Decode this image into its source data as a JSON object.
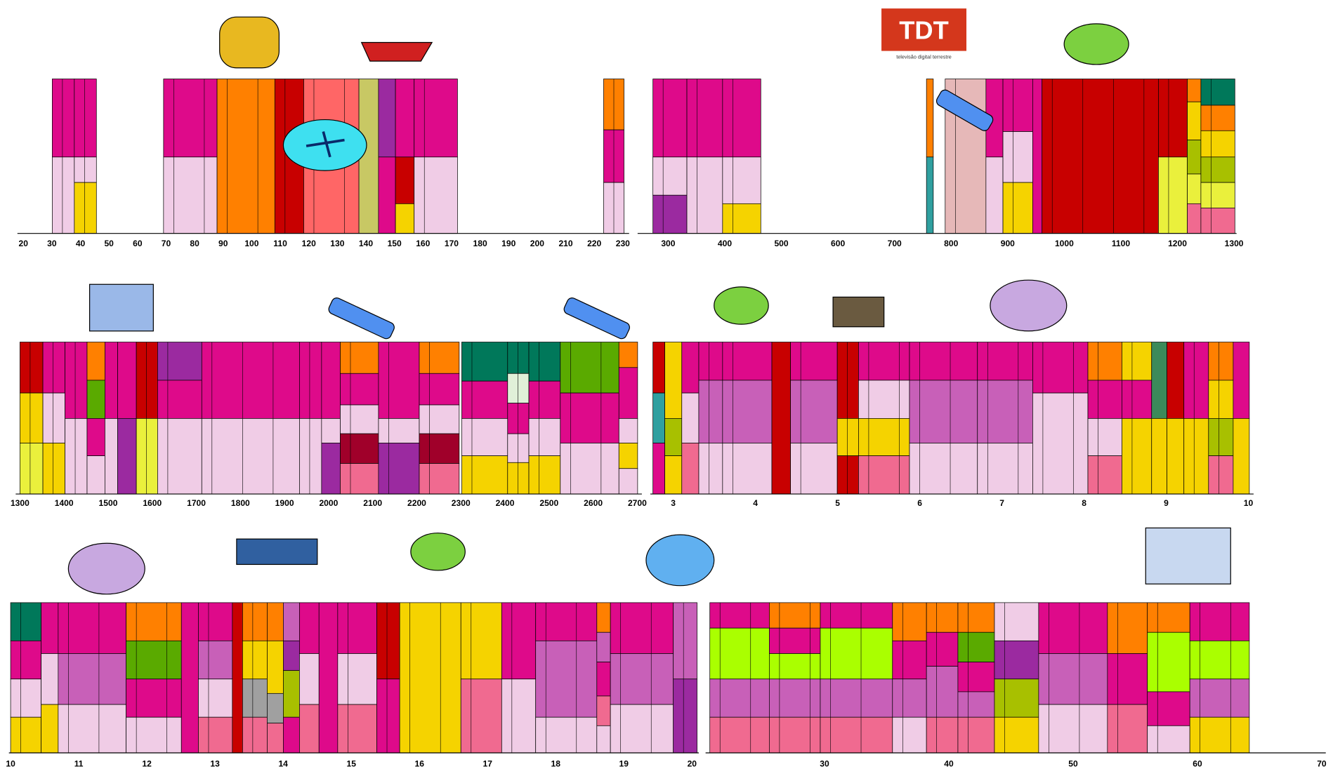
{
  "logo": {
    "title": "TDT",
    "subtitle": "televisão digital terrestre"
  },
  "rows": [
    {
      "ticks": [
        "20",
        "30",
        "40",
        "50",
        "60",
        "70",
        "80",
        "90",
        "100",
        "110",
        "120",
        "130",
        "140",
        "150",
        "160",
        "170",
        "180",
        "190",
        "200",
        "210",
        "220",
        "230",
        "300",
        "400",
        "500",
        "600",
        "700",
        "800",
        "900",
        "1000",
        "1100",
        "1200",
        "1300"
      ]
    },
    {
      "ticks": [
        "1300",
        "1400",
        "1500",
        "1600",
        "1700",
        "1800",
        "1900",
        "2000",
        "2100",
        "2200",
        "2300",
        "2400",
        "2500",
        "2600",
        "2700",
        "3",
        "4",
        "5",
        "6",
        "7",
        "8",
        "9",
        "10"
      ]
    },
    {
      "ticks": [
        "10",
        "11",
        "12",
        "13",
        "14",
        "15",
        "16",
        "17",
        "18",
        "19",
        "20",
        "30",
        "40",
        "50",
        "60",
        "70"
      ]
    }
  ]
}
